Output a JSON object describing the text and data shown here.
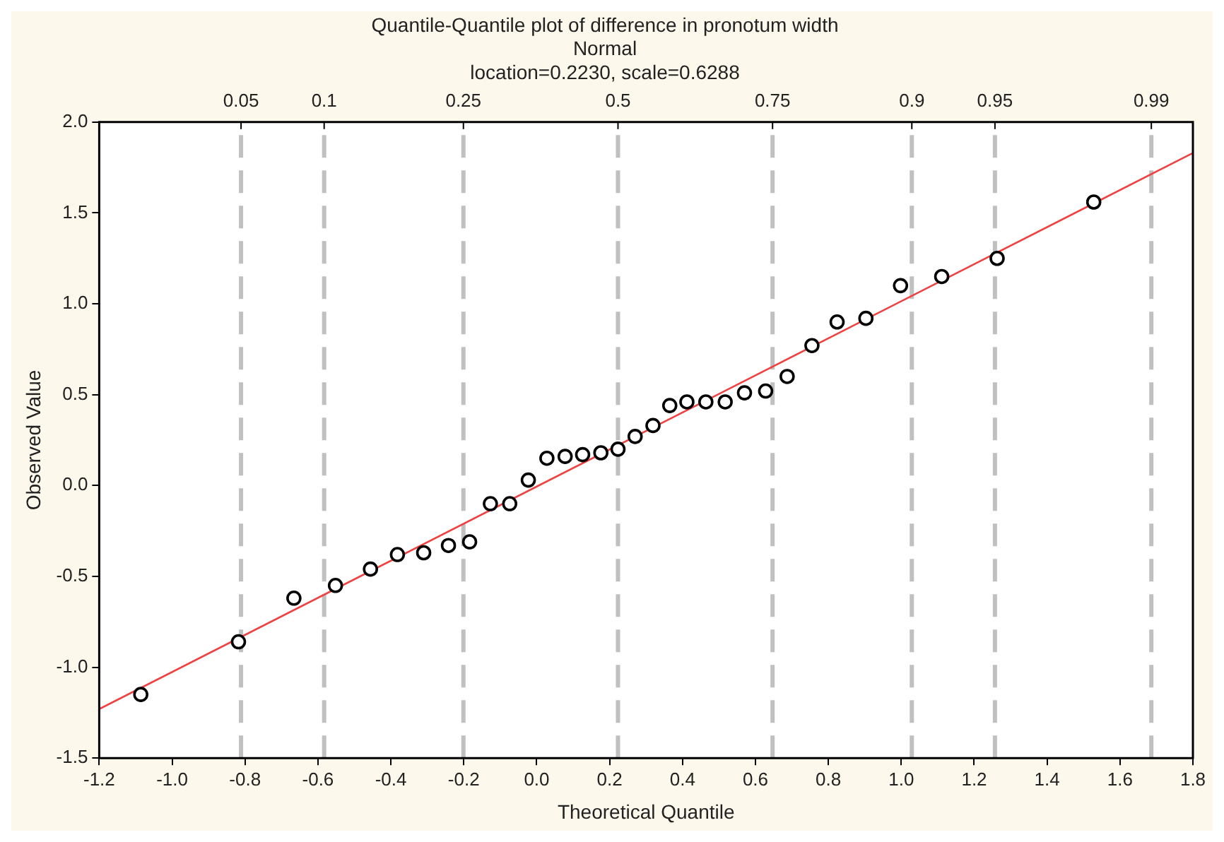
{
  "chart_data": {
    "type": "scatter",
    "title": "Quantile-Quantile plot of difference in pronotum width",
    "subtitle": "Normal",
    "annotations": [
      "location=0.2230, scale=0.6288",
      {
        "text": "0.05",
        "x": -0.811,
        "y": 2
      },
      {
        "text": "0.1",
        "x": -0.583,
        "y": 2
      },
      {
        "text": "0.25",
        "x": -0.201,
        "y": 2
      },
      {
        "text": "0.5",
        "x": 0.223,
        "y": 2
      },
      {
        "text": "0.75",
        "x": 0.647,
        "y": 2
      },
      {
        "text": "0.9",
        "x": 1.029,
        "y": 2
      },
      {
        "text": "0.95",
        "x": 1.257,
        "y": 2
      },
      {
        "text": "0.99",
        "x": 1.686,
        "y": 2
      }
    ],
    "xlabel": "Theoretical Quantile",
    "ylabel": "Observed Value",
    "series": [
      {
        "color": "#000000",
        "marker": "circle",
        "x": [
          -1.086,
          -0.818,
          -0.666,
          -0.552,
          -0.456,
          -0.382,
          -0.31,
          -0.242,
          -0.184,
          -0.127,
          -0.074,
          -0.023,
          0.028,
          0.078,
          0.126,
          0.176,
          0.223,
          0.27,
          0.319,
          0.365,
          0.412,
          0.464,
          0.517,
          0.57,
          0.628,
          0.687,
          0.755,
          0.824,
          0.903,
          0.998,
          1.111,
          1.263,
          1.528
        ],
        "values": [
          -1.15,
          -0.86,
          -0.62,
          -0.55,
          -0.46,
          -0.38,
          -0.37,
          -0.33,
          -0.31,
          -0.1,
          -0.1,
          0.03,
          0.15,
          0.16,
          0.17,
          0.18,
          0.2,
          0.27,
          0.33,
          0.44,
          0.46,
          0.46,
          0.46,
          0.51,
          0.52,
          0.6,
          0.77,
          0.9,
          0.92,
          1.1,
          1.15,
          1.25,
          1.56
        ]
      },
      {
        "type": "line",
        "color": "#f04040",
        "x": [
          -1.2,
          1.8
        ],
        "values": [
          -1.23,
          1.83
        ]
      }
    ],
    "legend": false,
    "xlim": [
      -1.2,
      1.8
    ],
    "xticks": [
      -1.2,
      {
        "value": -1,
        "label": "-1.0"
      },
      -0.8,
      -0.6,
      -0.4,
      -0.2,
      {
        "value": 0,
        "label": "0.0"
      },
      0.2,
      0.4,
      0.6,
      0.8,
      {
        "value": 1,
        "label": "1.0"
      },
      1.2,
      1.4,
      1.6,
      1.8
    ],
    "ref_lines": [
      {
        "axis": "x",
        "value": -0.811,
        "color": "#c0c0c0",
        "line_style": "dashed"
      },
      {
        "axis": "x",
        "value": -0.583,
        "color": "#c0c0c0",
        "line_style": "dashed"
      },
      {
        "axis": "x",
        "value": -0.201,
        "color": "#c0c0c0",
        "line_style": "dashed"
      },
      {
        "axis": "x",
        "value": 0.223,
        "color": "#c0c0c0",
        "line_style": "dashed"
      },
      {
        "axis": "x",
        "value": 0.647,
        "color": "#c0c0c0",
        "line_style": "dashed"
      },
      {
        "axis": "x",
        "value": 1.029,
        "color": "#c0c0c0",
        "line_style": "dashed"
      },
      {
        "axis": "x",
        "value": 1.257,
        "color": "#c0c0c0",
        "line_style": "dashed"
      },
      {
        "axis": "x",
        "value": 1.686,
        "color": "#c0c0c0",
        "line_style": "dashed"
      }
    ],
    "ylim": [
      -1.5,
      2
    ],
    "yticks": [
      -1.5,
      {
        "value": -1,
        "label": "-1.0"
      },
      -0.5,
      {
        "value": 0,
        "label": "0.0"
      },
      0.5,
      {
        "value": 1,
        "label": "1.0"
      },
      1.5,
      {
        "value": 2,
        "label": "2.0"
      }
    ]
  }
}
